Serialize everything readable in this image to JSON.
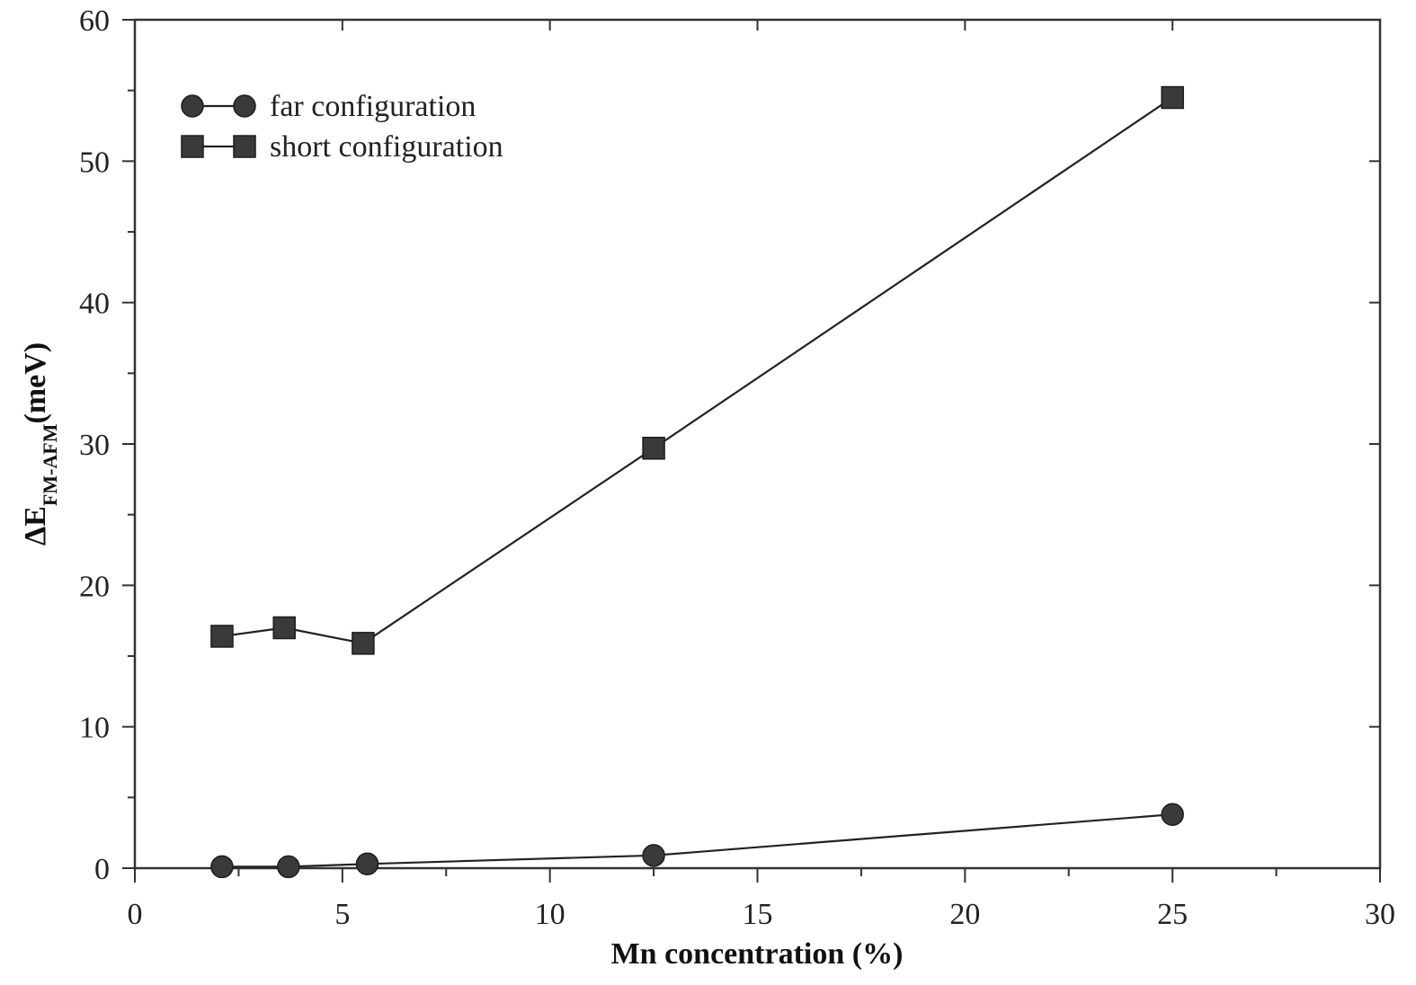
{
  "chart_data": {
    "type": "line",
    "xlabel": "Mn concentration (%)",
    "ylabel": {
      "prefix": "ΔE",
      "subscript": "FM-AFM",
      "suffix": "(meV)"
    },
    "xlim": [
      0,
      30
    ],
    "ylim": [
      0,
      60
    ],
    "x_ticks": [
      0,
      5,
      10,
      15,
      20,
      25,
      30
    ],
    "y_ticks": [
      0,
      10,
      20,
      30,
      40,
      50,
      60
    ],
    "x_tick_labels": [
      "0",
      "5",
      "10",
      "15",
      "20",
      "25",
      "30"
    ],
    "y_tick_labels": [
      "0",
      "10",
      "20",
      "30",
      "40",
      "50",
      "60"
    ],
    "grid": false,
    "legend_position": "top-left",
    "series": [
      {
        "name": "far configuration",
        "marker": "circle",
        "color": "#3a3a3a",
        "x": [
          2.1,
          3.7,
          5.6,
          12.5,
          25
        ],
        "y": [
          0.1,
          0.1,
          0.3,
          0.9,
          3.8
        ]
      },
      {
        "name": "short configuration",
        "marker": "square",
        "color": "#3a3a3a",
        "x": [
          2.1,
          3.6,
          5.5,
          12.5,
          25
        ],
        "y": [
          16.4,
          17.0,
          15.9,
          29.7,
          54.5
        ]
      }
    ]
  }
}
